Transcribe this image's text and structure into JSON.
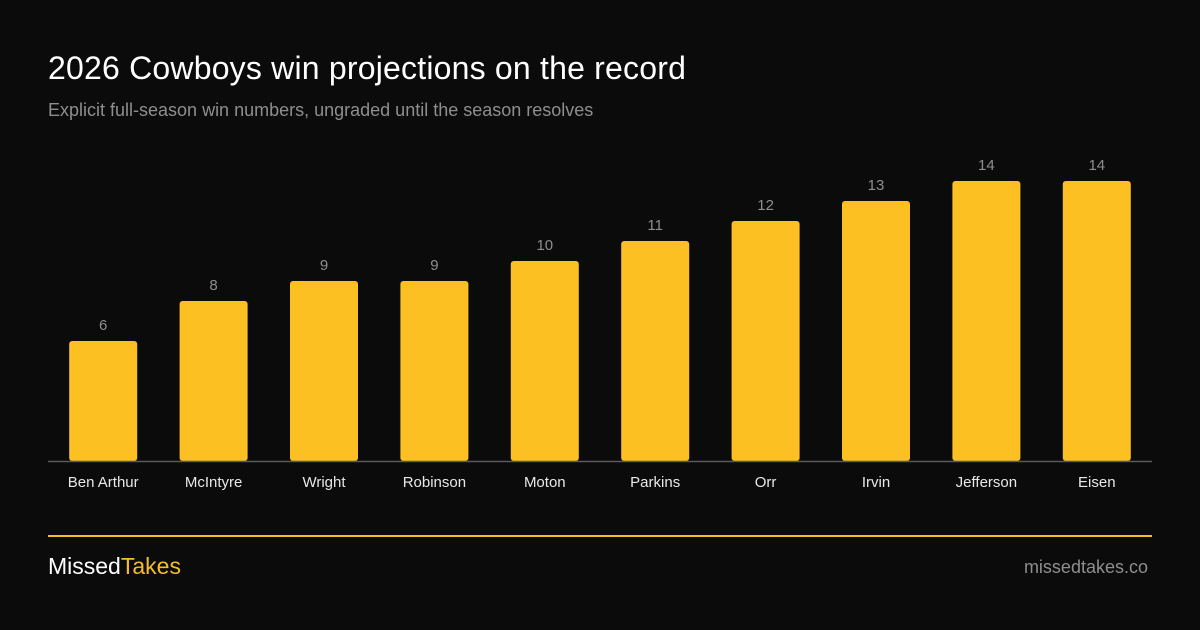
{
  "header": {
    "title": "2026 Cowboys win projections on the record",
    "subtitle": "Explicit full-season win numbers, ungraded until the season resolves"
  },
  "footer": {
    "brand_part1": "Missed",
    "brand_part2": "Takes",
    "site": "missedtakes.co"
  },
  "colors": {
    "background": "#0b0b0b",
    "bar": "#fdc023",
    "accent": "#f6bd2b",
    "muted_text": "#8e8e8e",
    "axis": "#5a5a5a"
  },
  "chart_data": {
    "type": "bar",
    "title": "2026 Cowboys win projections on the record",
    "subtitle": "Explicit full-season win numbers, ungraded until the season resolves",
    "xlabel": "",
    "ylabel": "",
    "categories": [
      "Ben Arthur",
      "McIntyre",
      "Wright",
      "Robinson",
      "Moton",
      "Parkins",
      "Orr",
      "Irvin",
      "Jefferson",
      "Eisen"
    ],
    "values": [
      6,
      8,
      9,
      9,
      10,
      11,
      12,
      13,
      14,
      14
    ],
    "ylim": [
      0,
      14
    ],
    "grid": false,
    "legend": "none",
    "data_labels": true
  }
}
